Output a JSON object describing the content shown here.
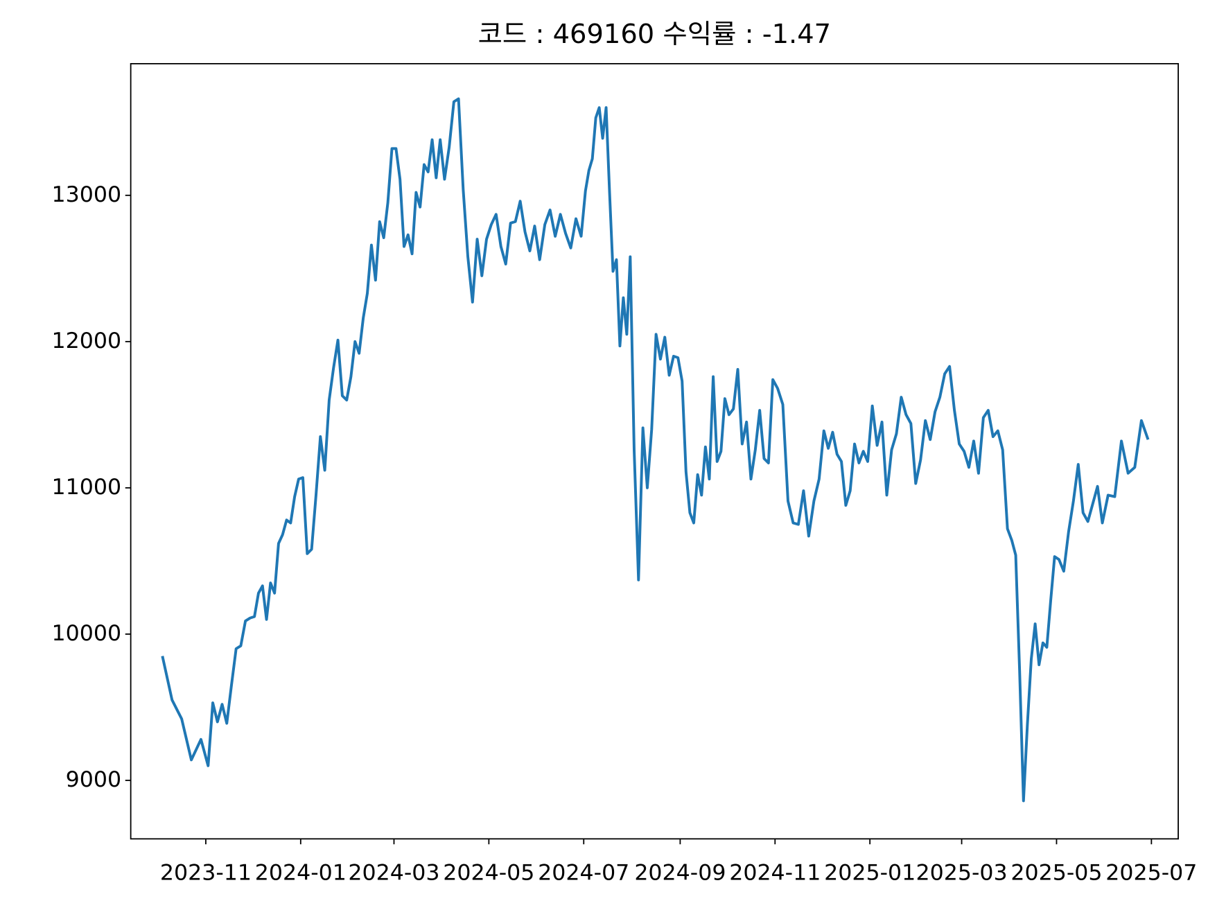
{
  "chart_data": {
    "type": "line",
    "title": "코드 : 469160 수익률 : -1.47",
    "x": [
      "2023-10",
      "2023-10",
      "2023-10",
      "2023-10",
      "2023-10",
      "2023-11",
      "2023-11",
      "2023-11",
      "2023-11",
      "2023-11",
      "2023-11",
      "2023-11",
      "2023-11",
      "2023-11",
      "2023-11",
      "2023-12",
      "2023-12",
      "2023-12",
      "2023-12",
      "2023-12",
      "2023-12",
      "2023-12",
      "2023-12",
      "2023-12",
      "2023-12",
      "2023-12",
      "2023-12",
      "2024-01",
      "2024-01",
      "2024-01",
      "2024-01",
      "2024-01",
      "2024-01",
      "2024-01",
      "2024-01",
      "2024-01",
      "2024-01",
      "2024-01",
      "2024-02",
      "2024-02",
      "2024-02",
      "2024-02",
      "2024-02",
      "2024-02",
      "2024-02",
      "2024-02",
      "2024-02",
      "2024-02",
      "2024-02",
      "2024-03",
      "2024-03",
      "2024-03",
      "2024-03",
      "2024-03",
      "2024-03",
      "2024-03",
      "2024-03",
      "2024-03",
      "2024-03",
      "2024-03",
      "2024-03",
      "2024-04",
      "2024-04",
      "2024-04",
      "2024-04",
      "2024-04",
      "2024-04",
      "2024-04",
      "2024-04",
      "2024-04",
      "2024-04",
      "2024-05",
      "2024-05",
      "2024-05",
      "2024-05",
      "2024-05",
      "2024-05",
      "2024-05",
      "2024-05",
      "2024-05",
      "2024-05",
      "2024-06",
      "2024-06",
      "2024-06",
      "2024-06",
      "2024-06",
      "2024-06",
      "2024-06",
      "2024-06",
      "2024-06",
      "2024-07",
      "2024-07",
      "2024-07",
      "2024-07",
      "2024-07",
      "2024-07",
      "2024-07",
      "2024-07",
      "2024-07",
      "2024-07",
      "2024-07",
      "2024-07",
      "2024-07",
      "2024-07",
      "2024-08",
      "2024-08",
      "2024-08",
      "2024-08",
      "2024-08",
      "2024-08",
      "2024-08",
      "2024-08",
      "2024-08",
      "2024-08",
      "2024-08",
      "2024-09",
      "2024-09",
      "2024-09",
      "2024-09",
      "2024-09",
      "2024-09",
      "2024-09",
      "2024-09",
      "2024-09",
      "2024-09",
      "2024-09",
      "2024-09",
      "2024-10",
      "2024-10",
      "2024-10",
      "2024-10",
      "2024-10",
      "2024-10",
      "2024-10",
      "2024-10",
      "2024-10",
      "2024-10",
      "2024-10",
      "2024-11",
      "2024-11",
      "2024-11",
      "2024-11",
      "2024-11",
      "2024-11",
      "2024-11",
      "2024-11",
      "2024-11",
      "2024-12",
      "2024-12",
      "2024-12",
      "2024-12",
      "2024-12",
      "2024-12",
      "2024-12",
      "2024-12",
      "2024-12",
      "2024-12",
      "2024-12",
      "2025-01",
      "2025-01",
      "2025-01",
      "2025-01",
      "2025-01",
      "2025-01",
      "2025-01",
      "2025-01",
      "2025-01",
      "2025-01",
      "2025-02",
      "2025-02",
      "2025-02",
      "2025-02",
      "2025-02",
      "2025-02",
      "2025-02",
      "2025-02",
      "2025-02",
      "2025-03",
      "2025-03",
      "2025-03",
      "2025-03",
      "2025-03",
      "2025-03",
      "2025-03",
      "2025-03",
      "2025-03",
      "2025-03",
      "2025-04",
      "2025-04",
      "2025-04",
      "2025-04",
      "2025-04",
      "2025-04",
      "2025-04",
      "2025-04",
      "2025-04",
      "2025-04",
      "2025-04",
      "2025-04",
      "2025-05",
      "2025-05",
      "2025-05",
      "2025-05",
      "2025-05",
      "2025-05",
      "2025-05",
      "2025-05",
      "2025-05",
      "2025-05",
      "2025-06",
      "2025-06",
      "2025-06",
      "2025-06",
      "2025-06",
      "2025-06",
      "2025-06"
    ],
    "series": [
      {
        "color": "#1f77b4",
        "values": [
          9850,
          9550,
          9420,
          9140,
          9280,
          9100,
          9530,
          9400,
          9520,
          9390,
          9650,
          9900,
          9920,
          10090,
          10110,
          10120,
          10280,
          10330,
          10100,
          10350,
          10280,
          10620,
          10680,
          10780,
          10760,
          10940,
          11060,
          11070,
          10550,
          10580,
          10950,
          11350,
          11120,
          11600,
          11820,
          12010,
          11630,
          11600,
          11760,
          12000,
          11920,
          12160,
          12330,
          12660,
          12420,
          12820,
          12710,
          12950,
          13320,
          13320,
          13110,
          12650,
          12730,
          12600,
          13020,
          12920,
          13210,
          13160,
          13380,
          13120,
          13380,
          13110,
          13330,
          13640,
          13660,
          13040,
          12580,
          12270,
          12700,
          12450,
          12700,
          12800,
          12870,
          12650,
          12530,
          12810,
          12820,
          12960,
          12750,
          12620,
          12790,
          12560,
          12800,
          12900,
          12720,
          12870,
          12740,
          12640,
          12840,
          12720,
          13030,
          13170,
          13250,
          13530,
          13600,
          13390,
          13600,
          13020,
          12480,
          12560,
          11970,
          12300,
          12050,
          12580,
          11260,
          10370,
          11410,
          11000,
          11400,
          12050,
          11880,
          12030,
          11770,
          11900,
          11890,
          11730,
          11110,
          10830,
          10760,
          11090,
          10950,
          11280,
          11060,
          11760,
          11180,
          11250,
          11610,
          11500,
          11540,
          11810,
          11300,
          11450,
          11060,
          11260,
          11530,
          11200,
          11170,
          11740,
          11680,
          11570,
          10910,
          10760,
          10750,
          10980,
          10670,
          10910,
          11060,
          11390,
          11270,
          11380,
          11230,
          11180,
          10880,
          10980,
          11300,
          11170,
          11250,
          11180,
          11560,
          11290,
          11450,
          10950,
          11260,
          11370,
          11620,
          11500,
          11440,
          11030,
          11190,
          11460,
          11330,
          11520,
          11620,
          11780,
          11830,
          11530,
          11300,
          11250,
          11140,
          11320,
          11100,
          11480,
          11530,
          11350,
          11390,
          11260,
          10720,
          10640,
          10540,
          9750,
          8860,
          9380,
          9830,
          10070,
          9790,
          9940,
          9910,
          10230,
          10530,
          10510,
          10430,
          10700,
          10910,
          11160,
          10830,
          10770,
          10890,
          11010,
          10760,
          10950,
          10940,
          11320,
          11100,
          11140,
          11460,
          11330
        ]
      }
    ],
    "xticks": [
      "2023-11",
      "2024-01",
      "2024-03",
      "2024-05",
      "2024-07",
      "2024-09",
      "2024-11",
      "2025-01",
      "2025-03",
      "2025-05",
      "2025-07"
    ],
    "ylim": [
      8600,
      13900
    ],
    "yticks": [
      9000,
      10000,
      11000,
      12000,
      13000
    ]
  }
}
